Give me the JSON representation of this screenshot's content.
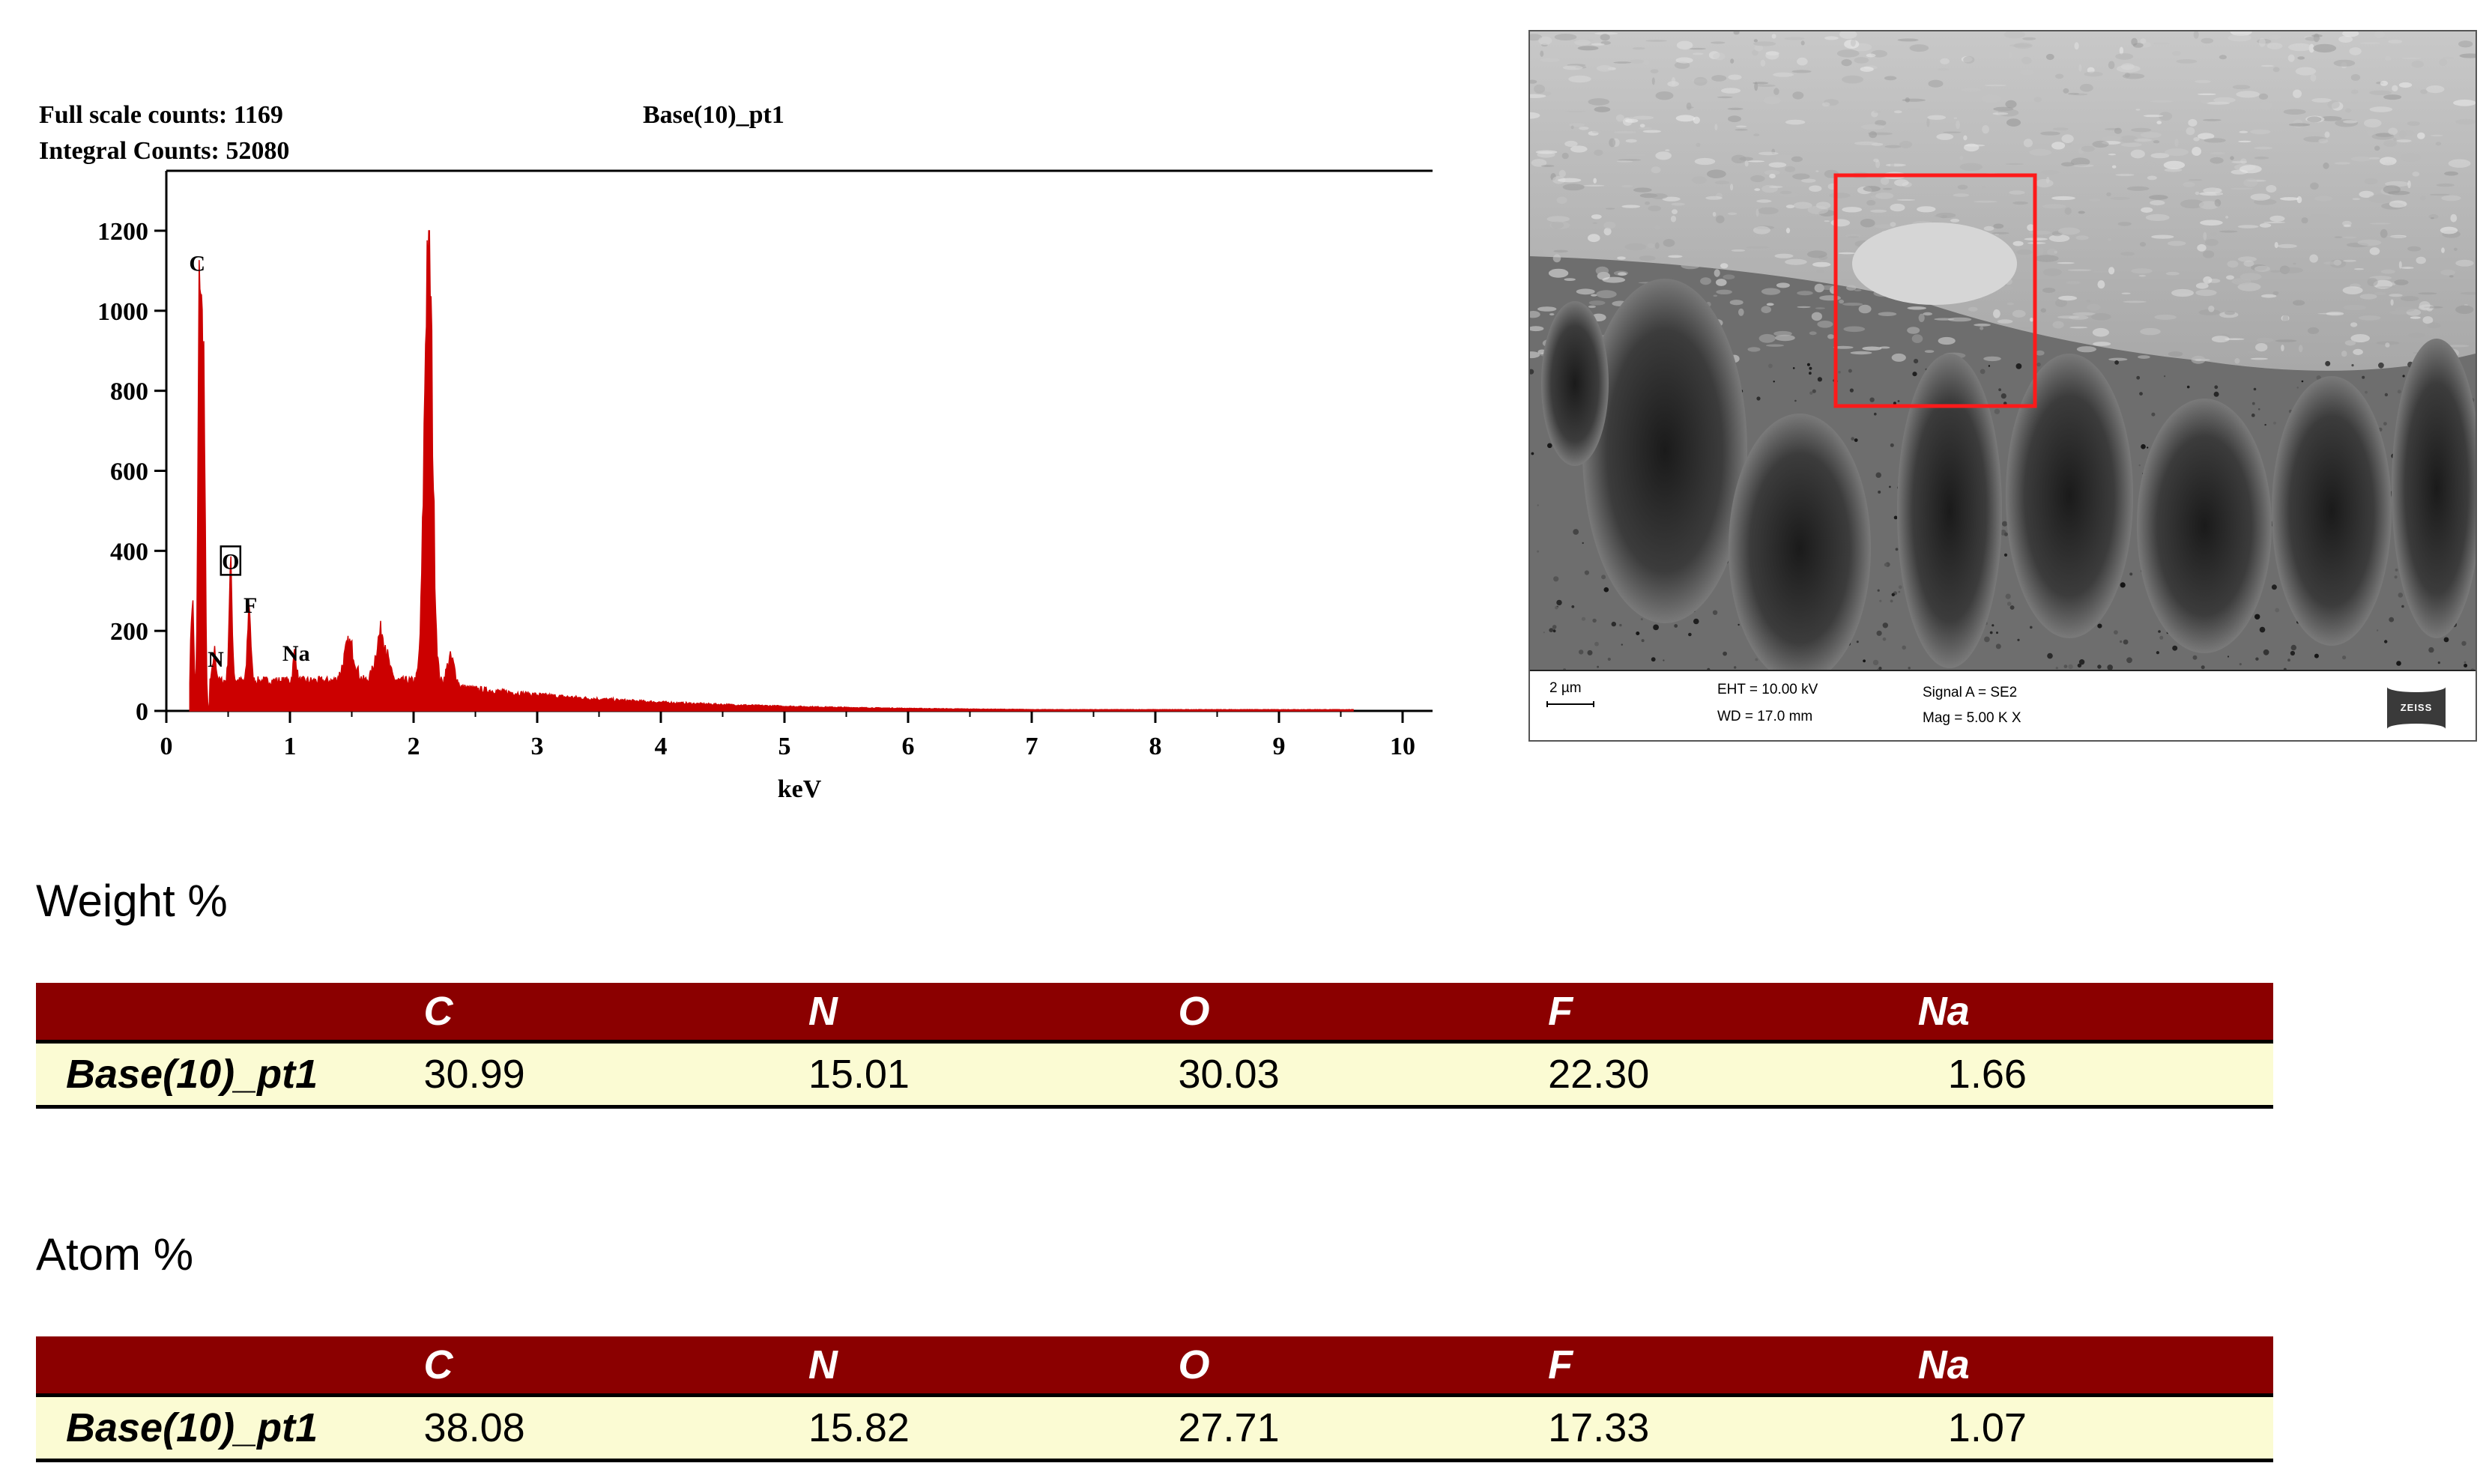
{
  "chart_data": {
    "type": "line",
    "title": "Base(10)_pt1",
    "header": {
      "full_scale_counts": "Full scale counts: 1169",
      "integral_counts": "Integral Counts: 52080"
    },
    "xlabel": "keV",
    "ylabel": "",
    "xlim": [
      0,
      10
    ],
    "ylim": [
      0,
      1200
    ],
    "x_ticks": [
      "0",
      "1",
      "2",
      "3",
      "4",
      "5",
      "6",
      "7",
      "8",
      "9",
      "10"
    ],
    "y_ticks": [
      "0",
      "200",
      "400",
      "600",
      "800",
      "1000",
      "1200"
    ],
    "series_color": "#cc0000",
    "peaks": [
      {
        "x": 0.21,
        "y": 280
      },
      {
        "x": 0.27,
        "y": 1080
      },
      {
        "x": 0.3,
        "y": 860
      },
      {
        "x": 0.39,
        "y": 110
      },
      {
        "x": 0.52,
        "y": 310
      },
      {
        "x": 0.67,
        "y": 230
      },
      {
        "x": 1.04,
        "y": 110
      },
      {
        "x": 1.48,
        "y": 130
      },
      {
        "x": 1.74,
        "y": 160
      },
      {
        "x": 2.12,
        "y": 1169
      },
      {
        "x": 2.3,
        "y": 100
      }
    ],
    "annotations": [
      {
        "label": "C",
        "x": 0.25,
        "y": 1100
      },
      {
        "label": "N",
        "x": 0.4,
        "y": 110
      },
      {
        "label": "O",
        "x": 0.52,
        "y": 355,
        "boxed": true
      },
      {
        "label": "F",
        "x": 0.68,
        "y": 245
      },
      {
        "label": "Na",
        "x": 1.05,
        "y": 125
      }
    ]
  },
  "sem": {
    "scale": "2 µm",
    "eht": "EHT = 10.00 kV",
    "wd": "WD = 17.0 mm",
    "signal": "Signal A = SE2",
    "mag": "Mag =   5.00 K X",
    "logo": "ZEISS"
  },
  "weight": {
    "title": "Weight %",
    "headers": [
      "C",
      "N",
      "O",
      "F",
      "Na"
    ],
    "row_label": "Base(10)_pt1",
    "values": [
      "30.99",
      "15.01",
      "30.03",
      "22.30",
      "1.66"
    ]
  },
  "atom": {
    "title": "Atom %",
    "headers": [
      "C",
      "N",
      "O",
      "F",
      "Na"
    ],
    "row_label": "Base(10)_pt1",
    "values": [
      "38.08",
      "15.82",
      "27.71",
      "17.33",
      "1.07"
    ]
  }
}
